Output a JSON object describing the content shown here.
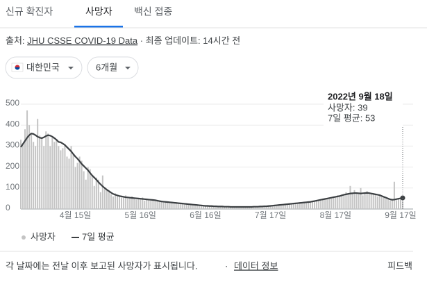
{
  "tabs": [
    "신규 확진자",
    "사망자",
    "백신 접종"
  ],
  "source": {
    "prefix": "출처:",
    "link": "JHU CSSE COVID-19 Data",
    "suffix": "· 최종 업데이트: 14시간 전"
  },
  "filters": [
    "대한민국",
    "6개월"
  ],
  "tooltip": {
    "date": "2022년 9월 18일",
    "lines": [
      "사망자: 39",
      "7일 평균: 53"
    ]
  },
  "footer": {
    "note": "각 날짜에는 전날 이후 보고된 사망자가 표시됩니다.",
    "separator": "·",
    "link": "데이터 정보",
    "feedback": "피드백"
  },
  "chart_data": {
    "type": "bar",
    "categories": [
      null,
      null,
      null,
      null,
      null,
      null,
      null,
      null,
      null,
      null,
      null,
      null,
      null,
      null,
      null,
      null,
      null,
      null,
      null,
      null,
      null,
      null,
      null,
      null,
      null,
      null,
      "4월 15일",
      null,
      null,
      null,
      null,
      null,
      null,
      null,
      null,
      null,
      null,
      null,
      null,
      null,
      null,
      null,
      null,
      null,
      null,
      null,
      null,
      null,
      null,
      null,
      null,
      null,
      null,
      null,
      null,
      null,
      null,
      "5월 16일",
      null,
      null,
      null,
      null,
      null,
      null,
      null,
      null,
      null,
      null,
      null,
      null,
      null,
      null,
      null,
      null,
      null,
      null,
      null,
      null,
      null,
      null,
      null,
      null,
      null,
      null,
      null,
      null,
      null,
      null,
      "6월 16일",
      null,
      null,
      null,
      null,
      null,
      null,
      null,
      null,
      null,
      null,
      null,
      null,
      null,
      null,
      null,
      null,
      null,
      null,
      null,
      null,
      null,
      null,
      null,
      null,
      null,
      null,
      null,
      null,
      null,
      null,
      "7월 17일",
      null,
      null,
      null,
      null,
      null,
      null,
      null,
      null,
      null,
      null,
      null,
      null,
      null,
      null,
      null,
      null,
      null,
      null,
      null,
      null,
      null,
      null,
      null,
      null,
      null,
      null,
      null,
      null,
      null,
      null,
      "8월 17일",
      null,
      null,
      null,
      null,
      null,
      null,
      null,
      null,
      null,
      null,
      null,
      null,
      null,
      null,
      null,
      null,
      null,
      null,
      null,
      null,
      null,
      null,
      null,
      null,
      null,
      null,
      null,
      null,
      null,
      null,
      "9월 17일",
      null
    ],
    "series": [
      {
        "name": "사망자",
        "type": "bar",
        "color": "#c4c4c4",
        "values": [
          330,
          310,
          380,
          470,
          400,
          360,
          320,
          300,
          430,
          350,
          340,
          300,
          370,
          360,
          300,
          340,
          320,
          330,
          300,
          280,
          290,
          310,
          250,
          240,
          300,
          260,
          200,
          220,
          250,
          230,
          180,
          140,
          200,
          190,
          160,
          110,
          150,
          140,
          80,
          160,
          100,
          90,
          80,
          70,
          60,
          75,
          65,
          60,
          55,
          58,
          65,
          50,
          52,
          60,
          55,
          45,
          50,
          48,
          55,
          40,
          50,
          42,
          45,
          40,
          45,
          38,
          35,
          40,
          32,
          36,
          30,
          33,
          28,
          30,
          32,
          25,
          28,
          24,
          26,
          22,
          25,
          20,
          22,
          18,
          21,
          17,
          19,
          14,
          16,
          15,
          13,
          15,
          12,
          14,
          11,
          13,
          12,
          10,
          12,
          9,
          11,
          10,
          9,
          8,
          12,
          9,
          11,
          10,
          9,
          12,
          8,
          13,
          10,
          12,
          11,
          14,
          12,
          15,
          13,
          16,
          15,
          19,
          17,
          20,
          21,
          22,
          20,
          25,
          23,
          26,
          24,
          30,
          27,
          32,
          28,
          33,
          30,
          35,
          32,
          40,
          37,
          42,
          45,
          40,
          50,
          46,
          53,
          55,
          50,
          60,
          55,
          65,
          58,
          70,
          66,
          80,
          68,
          110,
          72,
          90,
          78,
          70,
          100,
          65,
          80,
          85,
          72,
          75,
          68,
          72,
          60,
          70,
          58,
          55,
          48,
          50,
          40,
          45,
          130,
          42,
          50,
          55,
          39
        ]
      },
      {
        "name": "7일 평균",
        "type": "line",
        "color": "#3c4043",
        "values": [
          295,
          310,
          325,
          340,
          352,
          360,
          358,
          352,
          345,
          340,
          338,
          342,
          348,
          352,
          350,
          345,
          338,
          330,
          320,
          318,
          312,
          305,
          295,
          285,
          275,
          262,
          250,
          240,
          228,
          215,
          205,
          195,
          185,
          172,
          160,
          150,
          140,
          128,
          118,
          108,
          100,
          92,
          85,
          78,
          72,
          68,
          65,
          62,
          60,
          58,
          56,
          55,
          54,
          53,
          52,
          51,
          50,
          49,
          48,
          47,
          46,
          45,
          44,
          43,
          42,
          40,
          38,
          36,
          35,
          34,
          33,
          32,
          31,
          30,
          29,
          28,
          27,
          26,
          25,
          24,
          23,
          22,
          21,
          20,
          19,
          18,
          17,
          16,
          15,
          15,
          14,
          14,
          13,
          13,
          12,
          12,
          12,
          11,
          11,
          11,
          10,
          10,
          10,
          10,
          10,
          10,
          10,
          10,
          10,
          10,
          10,
          11,
          11,
          11,
          12,
          12,
          13,
          13,
          14,
          15,
          16,
          17,
          18,
          19,
          20,
          21,
          22,
          23,
          24,
          25,
          26,
          27,
          28,
          29,
          30,
          31,
          32,
          33,
          34,
          36,
          38,
          40,
          42,
          44,
          46,
          48,
          50,
          52,
          54,
          56,
          58,
          60,
          62,
          65,
          68,
          70,
          72,
          74,
          75,
          76,
          76,
          75,
          74,
          75,
          76,
          77,
          76,
          74,
          72,
          70,
          68,
          66,
          62,
          58,
          54,
          50,
          46,
          44,
          45,
          47,
          49,
          51,
          53
        ]
      }
    ],
    "ylim": [
      0,
      500
    ],
    "yticks": [
      0,
      100,
      200,
      300,
      400,
      500
    ],
    "grid": true,
    "legend": "bottom"
  }
}
